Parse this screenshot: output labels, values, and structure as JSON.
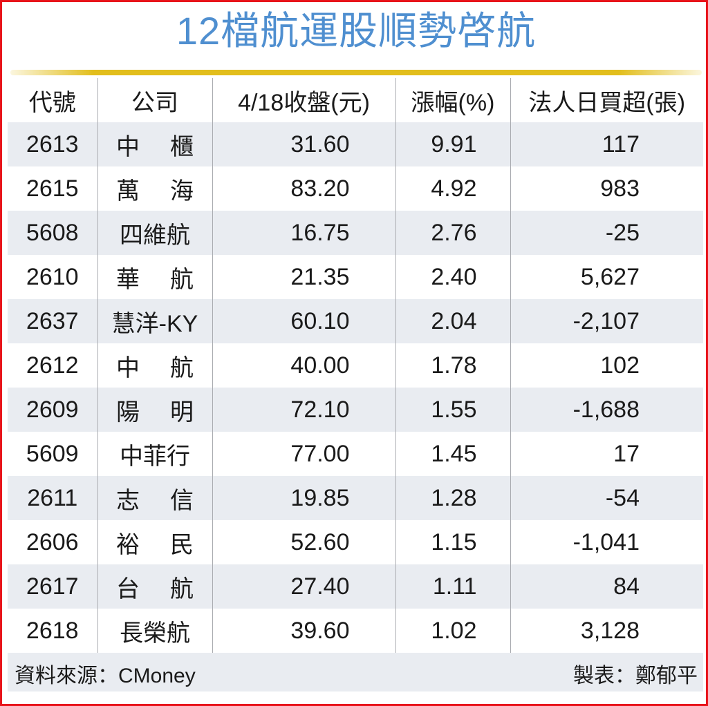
{
  "title": "12檔航運股順勢啓航",
  "table": {
    "headers": [
      "代號",
      "公司",
      "4/18收盤(元)",
      "漲幅(%)",
      "法人日買超(張)"
    ],
    "rows": [
      {
        "code": "2613",
        "name": "中櫃",
        "close": "31.60",
        "pct": "9.91",
        "inst": "117"
      },
      {
        "code": "2615",
        "name": "萬海",
        "close": "83.20",
        "pct": "4.92",
        "inst": "983"
      },
      {
        "code": "5608",
        "name": "四維航",
        "close": "16.75",
        "pct": "2.76",
        "inst": "-25"
      },
      {
        "code": "2610",
        "name": "華航",
        "close": "21.35",
        "pct": "2.40",
        "inst": "5,627"
      },
      {
        "code": "2637",
        "name": "慧洋-KY",
        "close": "60.10",
        "pct": "2.04",
        "inst": "-2,107"
      },
      {
        "code": "2612",
        "name": "中航",
        "close": "40.00",
        "pct": "1.78",
        "inst": "102"
      },
      {
        "code": "2609",
        "name": "陽明",
        "close": "72.10",
        "pct": "1.55",
        "inst": "-1,688"
      },
      {
        "code": "5609",
        "name": "中菲行",
        "close": "77.00",
        "pct": "1.45",
        "inst": "17"
      },
      {
        "code": "2611",
        "name": "志信",
        "close": "19.85",
        "pct": "1.28",
        "inst": "-54"
      },
      {
        "code": "2606",
        "name": "裕民",
        "close": "52.60",
        "pct": "1.15",
        "inst": "-1,041"
      },
      {
        "code": "2617",
        "name": "台航",
        "close": "27.40",
        "pct": "1.11",
        "inst": "84"
      },
      {
        "code": "2618",
        "name": "長榮航",
        "close": "39.60",
        "pct": "1.02",
        "inst": "3,128"
      }
    ]
  },
  "footer": {
    "source": "資料來源：CMoney",
    "maker": "製表：鄭郁平"
  },
  "colors": {
    "title": "#4f8fd0",
    "rule": "#e2be1c",
    "border": "#e8141b",
    "stripe": "#e9ecf1"
  },
  "chart_data": {
    "type": "table",
    "title": "12檔航運股順勢啓航",
    "columns": [
      "代號",
      "公司",
      "4/18收盤(元)",
      "漲幅(%)",
      "法人日買超(張)"
    ],
    "rows": [
      [
        "2613",
        "中櫃",
        31.6,
        9.91,
        117
      ],
      [
        "2615",
        "萬海",
        83.2,
        4.92,
        983
      ],
      [
        "5608",
        "四維航",
        16.75,
        2.76,
        -25
      ],
      [
        "2610",
        "華航",
        21.35,
        2.4,
        5627
      ],
      [
        "2637",
        "慧洋-KY",
        60.1,
        2.04,
        -2107
      ],
      [
        "2612",
        "中航",
        40.0,
        1.78,
        102
      ],
      [
        "2609",
        "陽明",
        72.1,
        1.55,
        -1688
      ],
      [
        "5609",
        "中菲行",
        77.0,
        1.45,
        17
      ],
      [
        "2611",
        "志信",
        19.85,
        1.28,
        -54
      ],
      [
        "2606",
        "裕民",
        52.6,
        1.15,
        -1041
      ],
      [
        "2617",
        "台航",
        27.4,
        1.11,
        84
      ],
      [
        "2618",
        "長榮航",
        39.6,
        1.02,
        3128
      ]
    ],
    "source": "CMoney",
    "xlabel": "",
    "ylabel": ""
  }
}
